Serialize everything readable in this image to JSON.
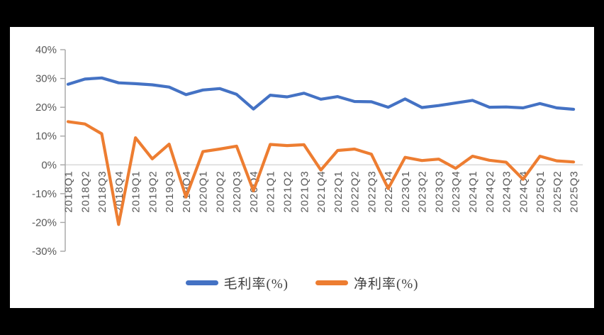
{
  "chart_data": {
    "type": "line",
    "categories": [
      "2018Q1",
      "2018Q2",
      "2018Q3",
      "2018Q4",
      "2019Q1",
      "2019Q2",
      "2019Q3",
      "2019Q4",
      "2020Q1",
      "2020Q2",
      "2020Q3",
      "2020Q4",
      "2021Q1",
      "2021Q2",
      "2021Q3",
      "2021Q4",
      "2022Q1",
      "2022Q2",
      "2022Q3",
      "2022Q4",
      "2023Q1",
      "2023Q2",
      "2023Q3",
      "2023Q4",
      "2024Q1",
      "2024Q2",
      "2024Q3",
      "2024Q4",
      "2025Q1",
      "2025Q2",
      "2025Q3"
    ],
    "series": [
      {
        "name": "毛利率(%)",
        "color": "#4472C4",
        "values": [
          28.0,
          29.8,
          30.2,
          28.5,
          28.2,
          27.8,
          27.0,
          24.4,
          26.0,
          26.5,
          24.5,
          19.4,
          24.2,
          23.6,
          24.9,
          22.8,
          23.7,
          22.0,
          21.9,
          20.0,
          22.9,
          19.9,
          20.6,
          21.5,
          22.4,
          20.0,
          20.1,
          19.8,
          21.3,
          19.8,
          19.3
        ]
      },
      {
        "name": "净利率(%)",
        "color": "#ED7D31",
        "values": [
          15.0,
          14.2,
          10.8,
          -20.7,
          9.4,
          2.1,
          7.2,
          -11.2,
          4.6,
          5.5,
          6.5,
          -9.0,
          7.1,
          6.7,
          7.0,
          -1.8,
          5.0,
          5.5,
          3.7,
          -8.2,
          2.6,
          1.5,
          2.0,
          -1.2,
          3.0,
          1.6,
          0.9,
          -5.0,
          3.0,
          1.4,
          1.0
        ]
      }
    ],
    "title": "",
    "xlabel": "",
    "ylabel": "",
    "ylim": [
      -30,
      40
    ],
    "y_tick_step": 10,
    "y_tick_labels": [
      "40%",
      "30%",
      "20%",
      "10%",
      "0%",
      "-10%",
      "-20%",
      "-30%"
    ],
    "grid": "zero-line-only",
    "legend_position": "bottom"
  },
  "legend": {
    "items": [
      {
        "label": "毛利率(%)",
        "color": "#4472C4"
      },
      {
        "label": "净利率(%)",
        "color": "#ED7D31"
      }
    ]
  },
  "colors": {
    "frame_background": "#000000",
    "panel_background": "#ffffff",
    "axis_line": "#A6A6A6",
    "zero_gridline": "#D9D9D9",
    "tick_label": "#595959"
  }
}
